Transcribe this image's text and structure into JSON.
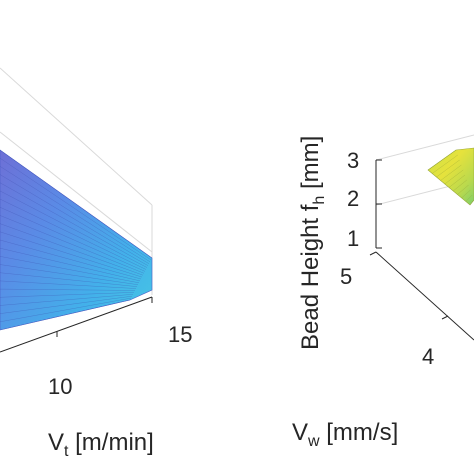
{
  "chart_data": [
    {
      "type": "surface",
      "x_axis": {
        "label_main": "V",
        "label_sub": "t",
        "label_unit": " [m/min]",
        "ticks": [
          "10",
          "15"
        ]
      },
      "surface": {
        "gradient": [
          "#6e6fd6",
          "#5a8be6",
          "#43b0ea",
          "#46c8e4"
        ]
      }
    },
    {
      "type": "surface",
      "z_axis": {
        "label_main": "Bead Height f",
        "label_sub": "h",
        "label_unit": " [mm]",
        "ticks": [
          "1",
          "2",
          "3"
        ],
        "range": [
          1,
          3
        ]
      },
      "y_axis": {
        "label_main": "V",
        "label_sub": "w",
        "label_unit": " [mm/s]",
        "ticks": [
          "4",
          "5"
        ]
      },
      "surface": {
        "gradient": [
          "#c9e04a",
          "#e6e23c",
          "#b8d94e",
          "#7fcf6a"
        ]
      }
    }
  ]
}
